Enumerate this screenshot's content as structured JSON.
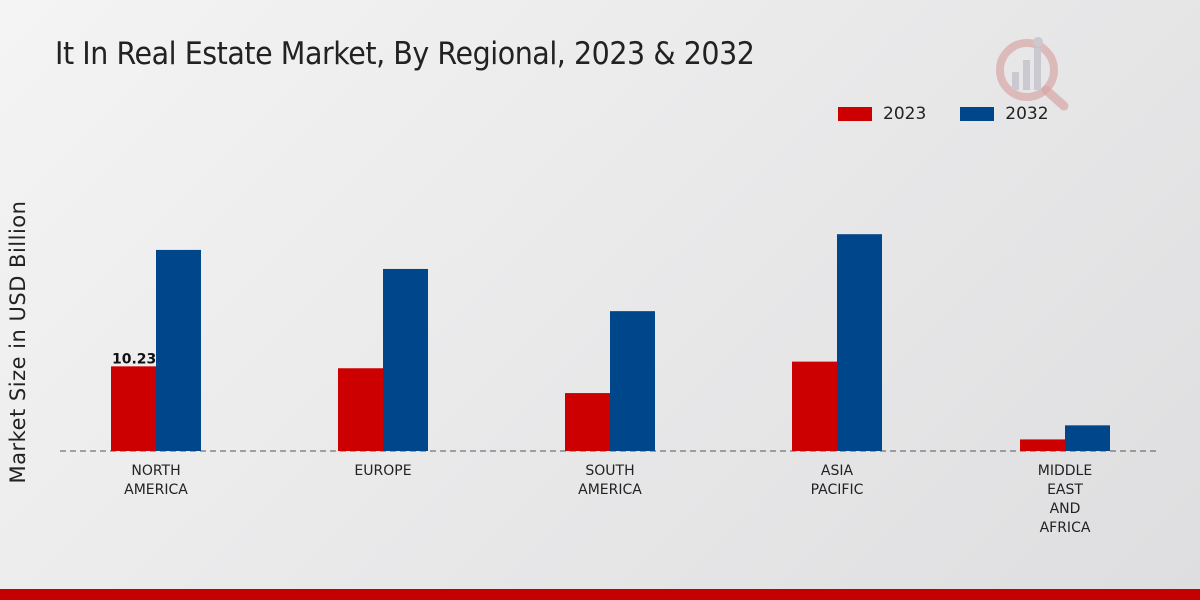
{
  "chart_data": {
    "type": "bar",
    "title": "It In Real Estate Market, By Regional, 2023 & 2032",
    "ylabel": "Market Size in USD Billion",
    "xlabel": "",
    "categories": [
      "NORTH\nAMERICA",
      "EUROPE",
      "SOUTH\nAMERICA",
      "ASIA\nPACIFIC",
      "MIDDLE\nEAST\nAND\nAFRICA"
    ],
    "series": [
      {
        "name": "2023",
        "color": "#cc0000",
        "values": [
          10.23,
          10.0,
          7.0,
          10.8,
          1.4
        ]
      },
      {
        "name": "2032",
        "color": "#00468b",
        "values": [
          24.3,
          22.0,
          16.9,
          26.2,
          3.1
        ]
      }
    ],
    "data_labels": [
      {
        "series": 0,
        "index": 0,
        "text": "10.23"
      }
    ],
    "ylim": [
      0,
      40
    ],
    "grid": false,
    "legend_position": "top-right"
  },
  "colors": {
    "accent_red": "#cc0000",
    "accent_blue": "#00468b"
  },
  "icons": {
    "logo": "magnifier-bar-chart-icon"
  }
}
